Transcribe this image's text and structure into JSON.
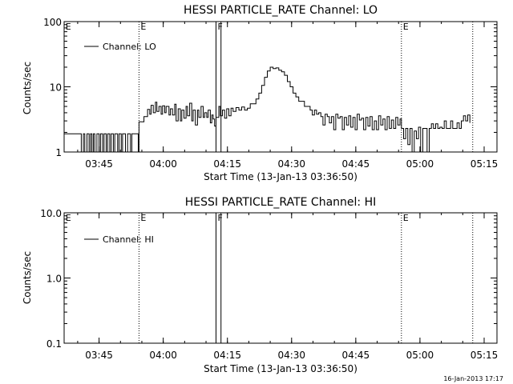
{
  "footer_stamp": "16-Jan-2013 17:17",
  "chart_data": [
    {
      "type": "line",
      "title": "HESSI PARTICLE_RATE Channel: LO",
      "xlabel": "Start Time (13-Jan-13 03:36:50)",
      "ylabel": "Counts/sec",
      "y_scale": "log",
      "xlim": [
        "03:36:50",
        "05:18:00"
      ],
      "ylim": [
        1,
        100
      ],
      "x_ticks": [
        "03:45",
        "04:00",
        "04:15",
        "04:30",
        "04:45",
        "05:00",
        "05:15"
      ],
      "y_ticks": [
        "1",
        "10",
        "100"
      ],
      "legend": {
        "placement": "top-left",
        "label": "Channel: LO"
      },
      "marker_lines": [
        {
          "time": "03:54:20",
          "label": "E",
          "style": "dotted"
        },
        {
          "time": "04:12:20",
          "label": "F",
          "style": "solid"
        },
        {
          "time": "04:13:30",
          "label": "",
          "style": "solid"
        },
        {
          "time": "04:55:40",
          "label": "E",
          "style": "dotted"
        },
        {
          "time": "05:12:20",
          "label": "",
          "style": "dotted"
        }
      ],
      "corner_labels": [
        {
          "time": "03:37:10",
          "label": "E"
        }
      ],
      "series": [
        {
          "name": "Channel: LO",
          "points": [
            [
              "03:36:50",
              1.9
            ],
            [
              "03:40:40",
              1.9
            ],
            [
              "03:40:50",
              1
            ],
            [
              "03:41:20",
              1.9
            ],
            [
              "03:41:40",
              1
            ],
            [
              "03:42:10",
              1.9
            ],
            [
              "03:42:40",
              1
            ],
            [
              "03:43:00",
              1.9
            ],
            [
              "03:43:20",
              1
            ],
            [
              "03:43:40",
              1.9
            ],
            [
              "03:44:00",
              1
            ],
            [
              "03:44:30",
              1.9
            ],
            [
              "03:45:00",
              1
            ],
            [
              "03:45:20",
              1.9
            ],
            [
              "03:45:50",
              1
            ],
            [
              "03:46:10",
              1.9
            ],
            [
              "03:46:40",
              1
            ],
            [
              "03:47:00",
              1.9
            ],
            [
              "03:47:30",
              1
            ],
            [
              "03:47:50",
              1.9
            ],
            [
              "03:48:20",
              1
            ],
            [
              "03:48:40",
              1.9
            ],
            [
              "03:49:20",
              1
            ],
            [
              "03:49:40",
              1.9
            ],
            [
              "03:50:10",
              1
            ],
            [
              "03:50:30",
              1.9
            ],
            [
              "03:51:00",
              1.9
            ],
            [
              "03:51:10",
              1
            ],
            [
              "03:51:40",
              1.9
            ],
            [
              "03:52:00",
              1.9
            ],
            [
              "03:52:20",
              1
            ],
            [
              "03:52:40",
              1.9
            ],
            [
              "03:54:00",
              1.9
            ],
            [
              "03:54:10",
              1
            ],
            [
              "03:54:20",
              2.9
            ],
            [
              "03:55:10",
              2.9
            ],
            [
              "03:55:30",
              3.5
            ],
            [
              "03:56:00",
              3.5
            ],
            [
              "03:56:20",
              4.5
            ],
            [
              "03:56:50",
              3.8
            ],
            [
              "03:57:10",
              5.2
            ],
            [
              "03:57:40",
              4.0
            ],
            [
              "03:58:10",
              5.8
            ],
            [
              "03:58:30",
              4.2
            ],
            [
              "03:59:00",
              5.0
            ],
            [
              "03:59:30",
              3.8
            ],
            [
              "03:59:50",
              5.1
            ],
            [
              "04:00:20",
              4.0
            ],
            [
              "04:00:40",
              5.0
            ],
            [
              "04:01:20",
              3.7
            ],
            [
              "04:01:40",
              4.6
            ],
            [
              "04:02:10",
              3.7
            ],
            [
              "04:02:40",
              5.4
            ],
            [
              "04:03:00",
              3.0
            ],
            [
              "04:03:30",
              4.6
            ],
            [
              "04:04:00",
              3.0
            ],
            [
              "04:04:20",
              4.4
            ],
            [
              "04:04:50",
              3.3
            ],
            [
              "04:05:20",
              5.0
            ],
            [
              "04:05:40",
              3.6
            ],
            [
              "04:06:10",
              5.6
            ],
            [
              "04:06:40",
              3.0
            ],
            [
              "04:07:00",
              4.4
            ],
            [
              "04:07:30",
              2.6
            ],
            [
              "04:08:00",
              4.4
            ],
            [
              "04:08:20",
              3.4
            ],
            [
              "04:08:50",
              5.0
            ],
            [
              "04:09:20",
              3.4
            ],
            [
              "04:09:40",
              4.0
            ],
            [
              "04:10:10",
              3.4
            ],
            [
              "04:10:30",
              4.4
            ],
            [
              "04:11:00",
              2.8
            ],
            [
              "04:11:20",
              3.7
            ],
            [
              "04:11:40",
              3.2
            ],
            [
              "04:12:00",
              2.5
            ],
            [
              "04:12:20",
              3.4
            ],
            [
              "04:13:00",
              5.0
            ],
            [
              "04:13:20",
              3.6
            ],
            [
              "04:13:50",
              4.4
            ],
            [
              "04:14:20",
              3.3
            ],
            [
              "04:14:50",
              4.6
            ],
            [
              "04:15:20",
              3.6
            ],
            [
              "04:15:50",
              4.7
            ],
            [
              "04:16:20",
              4.2
            ],
            [
              "04:17:00",
              4.8
            ],
            [
              "04:17:40",
              4.4
            ],
            [
              "04:18:20",
              4.9
            ],
            [
              "04:19:00",
              4.4
            ],
            [
              "04:19:40",
              4.7
            ],
            [
              "04:20:20",
              5.5
            ],
            [
              "04:21:00",
              5.5
            ],
            [
              "04:21:40",
              6.5
            ],
            [
              "04:22:20",
              8.0
            ],
            [
              "04:23:00",
              10.5
            ],
            [
              "04:23:40",
              14
            ],
            [
              "04:24:20",
              17.5
            ],
            [
              "04:25:00",
              20
            ],
            [
              "04:25:40",
              19
            ],
            [
              "04:26:20",
              19.5
            ],
            [
              "04:27:00",
              18
            ],
            [
              "04:27:40",
              17
            ],
            [
              "04:28:20",
              15
            ],
            [
              "04:29:00",
              12
            ],
            [
              "04:29:40",
              10
            ],
            [
              "04:30:20",
              8.0
            ],
            [
              "04:31:00",
              7.0
            ],
            [
              "04:31:40",
              6.0
            ],
            [
              "04:32:20",
              6.0
            ],
            [
              "04:33:00",
              5.0
            ],
            [
              "04:33:40",
              5.0
            ],
            [
              "04:34:20",
              4.4
            ],
            [
              "04:34:50",
              3.7
            ],
            [
              "04:35:20",
              4.4
            ],
            [
              "04:35:50",
              3.8
            ],
            [
              "04:36:20",
              4.0
            ],
            [
              "04:36:50",
              3.5
            ],
            [
              "04:37:20",
              2.6
            ],
            [
              "04:37:50",
              3.8
            ],
            [
              "04:38:20",
              3.5
            ],
            [
              "04:38:50",
              2.8
            ],
            [
              "04:39:20",
              3.5
            ],
            [
              "04:39:50",
              2.2
            ],
            [
              "04:40:20",
              3.8
            ],
            [
              "04:40:50",
              3.3
            ],
            [
              "04:41:20",
              3.5
            ],
            [
              "04:41:50",
              2.2
            ],
            [
              "04:42:20",
              3.4
            ],
            [
              "04:42:50",
              2.6
            ],
            [
              "04:43:20",
              3.6
            ],
            [
              "04:43:50",
              2.4
            ],
            [
              "04:44:20",
              3.4
            ],
            [
              "04:44:50",
              2.2
            ],
            [
              "04:45:20",
              3.8
            ],
            [
              "04:45:50",
              3.1
            ],
            [
              "04:46:20",
              3.3
            ],
            [
              "04:46:50",
              2.2
            ],
            [
              "04:47:20",
              3.4
            ],
            [
              "04:47:50",
              2.5
            ],
            [
              "04:48:20",
              3.5
            ],
            [
              "04:48:50",
              2.2
            ],
            [
              "04:49:20",
              3.0
            ],
            [
              "04:49:50",
              2.2
            ],
            [
              "04:50:20",
              3.6
            ],
            [
              "04:50:50",
              2.6
            ],
            [
              "04:51:20",
              3.2
            ],
            [
              "04:51:50",
              2.2
            ],
            [
              "04:52:20",
              3.5
            ],
            [
              "04:52:50",
              2.3
            ],
            [
              "04:53:20",
              3.1
            ],
            [
              "04:53:50",
              2.3
            ],
            [
              "04:54:20",
              3.4
            ],
            [
              "04:54:50",
              2.6
            ],
            [
              "04:55:20",
              3.2
            ],
            [
              "04:55:40",
              2.3
            ],
            [
              "04:56:10",
              1.6
            ],
            [
              "04:56:40",
              2.3
            ],
            [
              "04:57:10",
              1.3
            ],
            [
              "04:57:40",
              2.3
            ],
            [
              "04:58:10",
              1.0
            ],
            [
              "04:58:40",
              2.1
            ],
            [
              "04:59:10",
              1.6
            ],
            [
              "04:59:40",
              2.4
            ],
            [
              "05:00:10",
              1.0
            ],
            [
              "05:00:40",
              2.3
            ],
            [
              "05:01:10",
              2.3
            ],
            [
              "05:01:40",
              1.0
            ],
            [
              "05:02:10",
              2.3
            ],
            [
              "05:02:40",
              2.7
            ],
            [
              "05:03:10",
              2.3
            ],
            [
              "05:03:40",
              2.7
            ],
            [
              "05:04:10",
              2.3
            ],
            [
              "05:04:40",
              2.4
            ],
            [
              "05:05:10",
              2.3
            ],
            [
              "05:05:40",
              3.0
            ],
            [
              "05:06:10",
              2.3
            ],
            [
              "05:06:40",
              2.3
            ],
            [
              "05:07:10",
              3.0
            ],
            [
              "05:07:40",
              2.3
            ],
            [
              "05:08:10",
              2.3
            ],
            [
              "05:08:40",
              2.8
            ],
            [
              "05:09:10",
              2.3
            ],
            [
              "05:09:40",
              3.0
            ],
            [
              "05:10:10",
              3.6
            ],
            [
              "05:10:40",
              3.0
            ],
            [
              "05:11:10",
              3.7
            ],
            [
              "05:11:40",
              2.8
            ]
          ]
        }
      ]
    },
    {
      "type": "line",
      "title": "HESSI PARTICLE_RATE Channel: HI",
      "xlabel": "Start Time (13-Jan-13 03:36:50)",
      "ylabel": "Counts/sec",
      "y_scale": "log",
      "xlim": [
        "03:36:50",
        "05:18:00"
      ],
      "ylim": [
        0.1,
        10
      ],
      "x_ticks": [
        "03:45",
        "04:00",
        "04:15",
        "04:30",
        "04:45",
        "05:00",
        "05:15"
      ],
      "y_ticks": [
        "0.1",
        "1.0",
        "10.0"
      ],
      "legend": {
        "placement": "top-left",
        "label": "Channel: HI"
      },
      "marker_lines": [
        {
          "time": "03:54:20",
          "label": "E",
          "style": "dotted"
        },
        {
          "time": "04:12:20",
          "label": "F",
          "style": "solid"
        },
        {
          "time": "04:13:30",
          "label": "",
          "style": "solid"
        },
        {
          "time": "04:55:40",
          "label": "E",
          "style": "dotted"
        },
        {
          "time": "05:12:20",
          "label": "",
          "style": "dotted"
        }
      ],
      "corner_labels": [
        {
          "time": "03:37:10",
          "label": "E"
        }
      ],
      "series": [
        {
          "name": "Channel: HI",
          "points": []
        }
      ]
    }
  ]
}
